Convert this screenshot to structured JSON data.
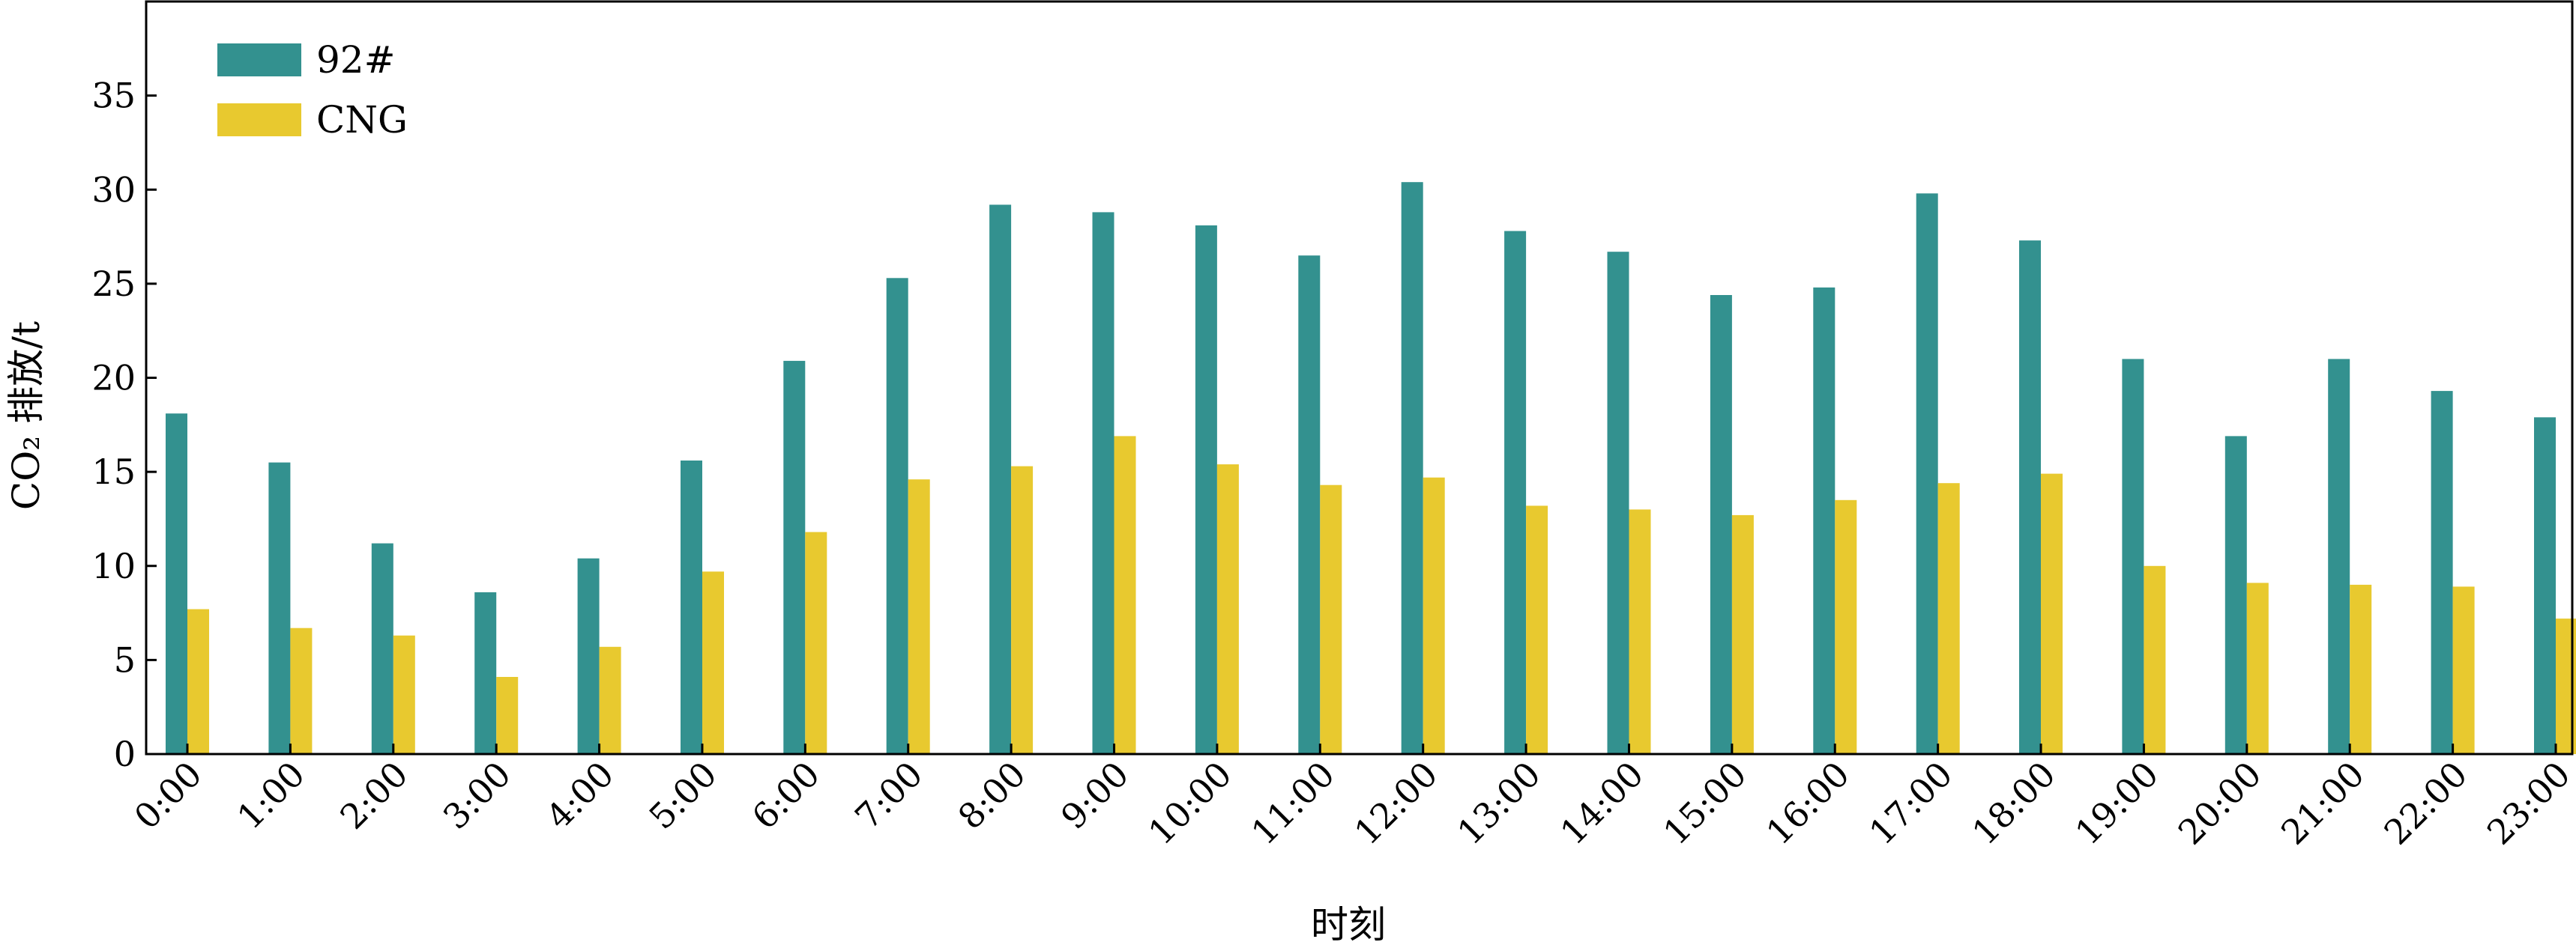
{
  "chart_data": {
    "type": "bar",
    "title": "",
    "xlabel": "时刻",
    "ylabel": "CO₂ 排放/t",
    "ylim": [
      0,
      40
    ],
    "yticks": [
      0,
      5,
      10,
      15,
      20,
      25,
      30,
      35
    ],
    "grid": false,
    "legend_position": "top-left",
    "categories": [
      "0:00",
      "1:00",
      "2:00",
      "3:00",
      "4:00",
      "5:00",
      "6:00",
      "7:00",
      "8:00",
      "9:00",
      "10:00",
      "11:00",
      "12:00",
      "13:00",
      "14:00",
      "15:00",
      "16:00",
      "17:00",
      "18:00",
      "19:00",
      "20:00",
      "21:00",
      "22:00",
      "23:00"
    ],
    "series": [
      {
        "name": "92#",
        "color": "#33918f",
        "values": [
          18.1,
          15.5,
          11.2,
          8.6,
          10.4,
          15.6,
          20.9,
          25.3,
          29.2,
          28.8,
          28.1,
          26.5,
          30.4,
          27.8,
          26.7,
          24.4,
          24.8,
          29.8,
          27.3,
          21.0,
          16.9,
          21.0,
          19.3,
          17.9
        ]
      },
      {
        "name": "CNG",
        "color": "#e8c92f",
        "values": [
          7.7,
          6.7,
          6.3,
          4.1,
          5.7,
          9.7,
          11.8,
          14.6,
          15.3,
          16.9,
          15.4,
          14.3,
          14.7,
          13.2,
          13.0,
          12.7,
          13.5,
          14.4,
          14.9,
          10.0,
          9.1,
          9.0,
          8.9,
          7.2
        ]
      }
    ]
  }
}
